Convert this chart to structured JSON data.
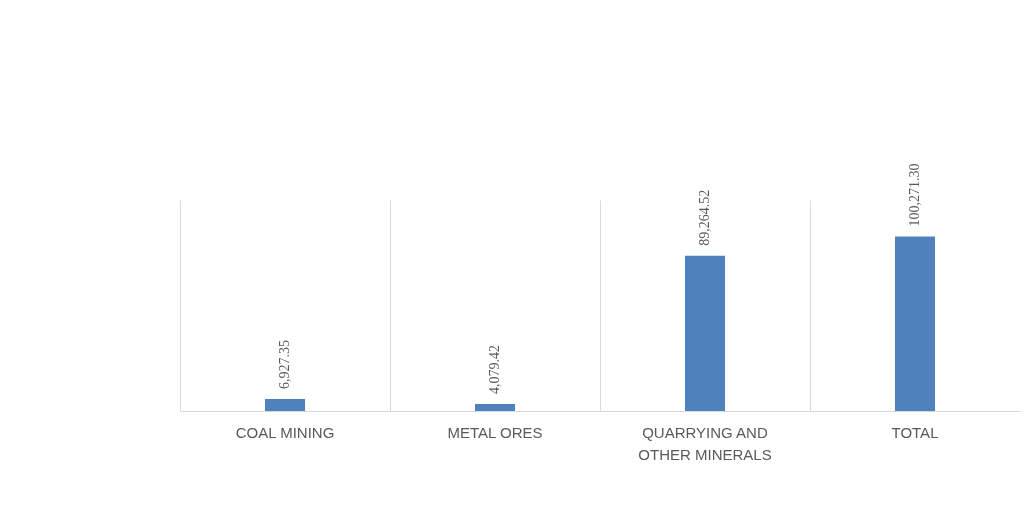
{
  "chart_data": {
    "type": "bar",
    "categories": [
      "COAL MINING",
      "METAL ORES",
      "QUARRYING AND OTHER MINERALS",
      "TOTAL"
    ],
    "values": [
      6927.35,
      4079.42,
      89264.52,
      100271.3
    ],
    "value_labels": [
      "6,927.35",
      "4,079.42",
      "89,264.52",
      "100,271.30"
    ],
    "color": "#4f81bd",
    "grid": "x"
  }
}
